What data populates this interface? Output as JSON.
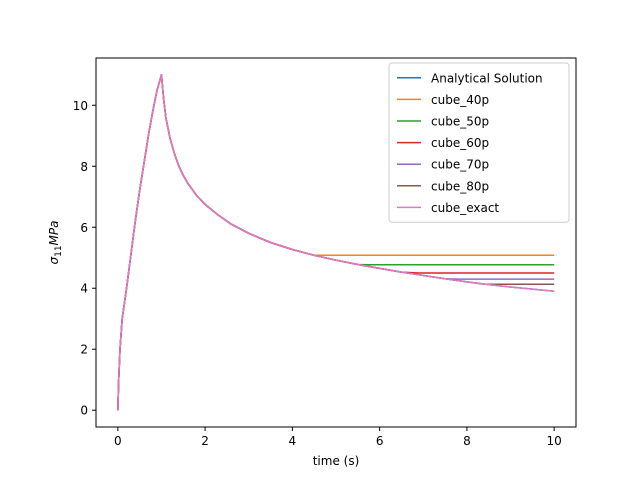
{
  "chart_data": {
    "type": "line",
    "xlabel": "time (s)",
    "ylabel_base": "σ",
    "ylabel_sub": "11",
    "ylabel_unit": "MPa",
    "xlim": [
      -0.5,
      10.5
    ],
    "ylim": [
      -0.55,
      11.55
    ],
    "xticks": [
      0,
      2,
      4,
      6,
      8,
      10
    ],
    "yticks": [
      0,
      2,
      4,
      6,
      8,
      10
    ],
    "grid": false,
    "legend_position": "top-right",
    "series": [
      {
        "name": "Analytical Solution",
        "color": "#1f77b4",
        "plateau_from": null,
        "plateau_value": null
      },
      {
        "name": "cube_40p",
        "color": "#ff7f0e",
        "plateau_from": 4.6,
        "plateau_value": 5.08
      },
      {
        "name": "cube_50p",
        "color": "#2ca02c",
        "plateau_from": 5.8,
        "plateau_value": 4.77
      },
      {
        "name": "cube_60p",
        "color": "#d62728",
        "plateau_from": 6.9,
        "plateau_value": 4.5
      },
      {
        "name": "cube_70p",
        "color": "#9467bd",
        "plateau_from": 7.8,
        "plateau_value": 4.3
      },
      {
        "name": "cube_80p",
        "color": "#8c564b",
        "plateau_from": 8.4,
        "plateau_value": 4.13
      },
      {
        "name": "cube_exact",
        "color": "#e377c2",
        "plateau_from": null,
        "plateau_value": null
      }
    ],
    "base_curve": {
      "x": [
        0,
        0.02,
        0.05,
        0.1,
        0.2,
        0.3,
        0.4,
        0.5,
        0.6,
        0.7,
        0.8,
        0.9,
        1.0,
        1.05,
        1.1,
        1.2,
        1.3,
        1.4,
        1.5,
        1.6,
        1.8,
        2.0,
        2.3,
        2.6,
        3.0,
        3.5,
        4.0,
        4.5,
        5.0,
        5.5,
        6.0,
        6.5,
        7.0,
        7.5,
        8.0,
        8.5,
        9.0,
        9.5,
        10.0
      ],
      "y": [
        0,
        1.0,
        2.0,
        3.0,
        4.0,
        5.1,
        6.2,
        7.2,
        8.1,
        9.0,
        9.8,
        10.5,
        11.0,
        10.2,
        9.6,
        8.9,
        8.4,
        8.0,
        7.7,
        7.45,
        7.05,
        6.75,
        6.4,
        6.1,
        5.8,
        5.5,
        5.27,
        5.08,
        4.92,
        4.78,
        4.65,
        4.53,
        4.42,
        4.31,
        4.21,
        4.12,
        4.04,
        3.97,
        3.9
      ]
    }
  }
}
